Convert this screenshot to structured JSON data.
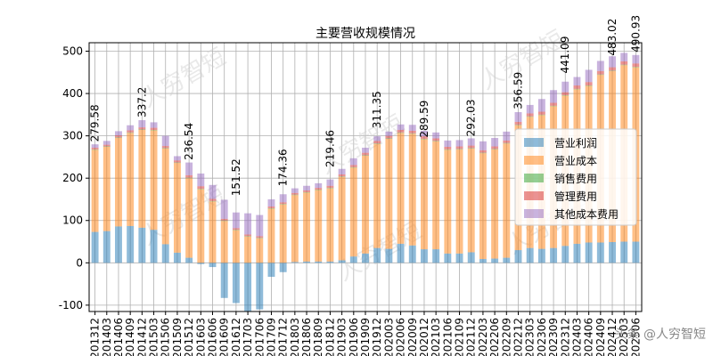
{
  "chart_data": {
    "type": "bar",
    "stacked": true,
    "title": "主要营收规模情况",
    "xlabel": "",
    "ylabel": "",
    "ylim": [
      -115,
      520
    ],
    "yticks": [
      -100,
      0,
      100,
      200,
      300,
      400,
      500
    ],
    "grid": true,
    "legend_position": "right",
    "categories": [
      "201312",
      "201403",
      "201406",
      "201409",
      "201412",
      "201503",
      "201506",
      "201509",
      "201512",
      "201603",
      "201606",
      "201609",
      "201612",
      "201703",
      "201706",
      "201709",
      "201712",
      "201803",
      "201806",
      "201809",
      "201812",
      "201903",
      "201906",
      "201909",
      "201912",
      "202003",
      "202006",
      "202009",
      "202012",
      "202103",
      "202106",
      "202109",
      "202112",
      "202203",
      "202206",
      "202209",
      "202212",
      "202303",
      "202306",
      "202309",
      "202312",
      "202403",
      "202406",
      "202409",
      "202412",
      "202503",
      "202506"
    ],
    "series": [
      {
        "name": "营业利润",
        "color": "#1f77b4",
        "values": [
          73,
          75,
          86,
          87,
          83,
          78,
          44,
          24,
          12,
          -3,
          -10,
          -83,
          -95,
          -115,
          -110,
          -33,
          -22,
          2,
          3,
          3,
          3,
          6,
          15,
          22,
          35,
          33,
          45,
          41,
          32,
          32,
          22,
          22,
          25,
          9,
          10,
          12,
          30,
          35,
          33,
          35,
          40,
          45,
          48,
          48,
          49,
          50,
          50
        ]
      },
      {
        "name": "营业成本",
        "color": "#ff7f0e",
        "values": [
          194,
          199,
          209,
          220,
          231,
          235,
          226,
          212,
          188,
          174,
          145,
          99,
          77,
          62,
          58,
          128,
          138,
          158,
          163,
          169,
          173,
          197,
          210,
          231,
          246,
          260,
          262,
          264,
          260,
          255,
          245,
          246,
          245,
          250,
          258,
          270,
          295,
          310,
          316,
          335,
          355,
          365,
          370,
          396,
          404,
          417,
          412
        ]
      },
      {
        "name": "销售费用",
        "color": "#2ca02c",
        "values": [
          1,
          1,
          1,
          1,
          1,
          1,
          1,
          1,
          1,
          1,
          1,
          1,
          1,
          1,
          1,
          1,
          1,
          1,
          1,
          1,
          1,
          1,
          1,
          1,
          1,
          1,
          1,
          1,
          1,
          1,
          1,
          1,
          1,
          1,
          1,
          1,
          1,
          1,
          1,
          1,
          1,
          1,
          1,
          1,
          1,
          1,
          1
        ]
      },
      {
        "name": "管理费用",
        "color": "#d62728",
        "values": [
          4,
          4,
          5,
          5,
          5,
          5,
          5,
          5,
          6,
          6,
          5,
          4,
          4,
          4,
          4,
          4,
          4,
          4,
          4,
          4,
          5,
          5,
          5,
          6,
          6,
          6,
          6,
          6,
          6,
          6,
          6,
          6,
          6,
          6,
          6,
          6,
          7,
          7,
          7,
          7,
          7,
          8,
          8,
          8,
          8,
          8,
          8
        ]
      },
      {
        "name": "其他成本费用",
        "color": "#9467bd",
        "values": [
          8,
          9,
          10,
          12,
          17,
          13,
          24,
          10,
          30,
          30,
          33,
          45,
          37,
          50,
          50,
          17,
          19,
          11,
          11,
          11,
          15,
          13,
          16,
          12,
          11,
          10,
          13,
          14,
          13,
          14,
          15,
          15,
          17,
          21,
          20,
          21,
          23,
          20,
          30,
          30,
          25,
          20,
          29,
          24,
          26,
          20,
          20
        ]
      }
    ],
    "annotations": [
      {
        "category": "201312",
        "value": 279.58,
        "text": "279.58"
      },
      {
        "category": "201412",
        "value": 337.2,
        "text": "337.2"
      },
      {
        "category": "201512",
        "value": 236.54,
        "text": "236.54"
      },
      {
        "category": "201612",
        "value": 151.52,
        "text": "151.52"
      },
      {
        "category": "201712",
        "value": 174.36,
        "text": "174.36"
      },
      {
        "category": "201812",
        "value": 219.46,
        "text": "219.46"
      },
      {
        "category": "201912",
        "value": 311.35,
        "text": "311.35"
      },
      {
        "category": "202012",
        "value": 289.59,
        "text": "289.59"
      },
      {
        "category": "202112",
        "value": 292.03,
        "text": "292.03"
      },
      {
        "category": "202212",
        "value": 356.59,
        "text": "356.59"
      },
      {
        "category": "202312",
        "value": 441.09,
        "text": "441.09"
      },
      {
        "category": "202412",
        "value": 483.02,
        "text": "483.02"
      },
      {
        "category": "202506",
        "value": 490.93,
        "text": "490.93"
      }
    ]
  },
  "watermark": {
    "text": "人穷智短",
    "corner_text": "头条 @人穷智短"
  }
}
